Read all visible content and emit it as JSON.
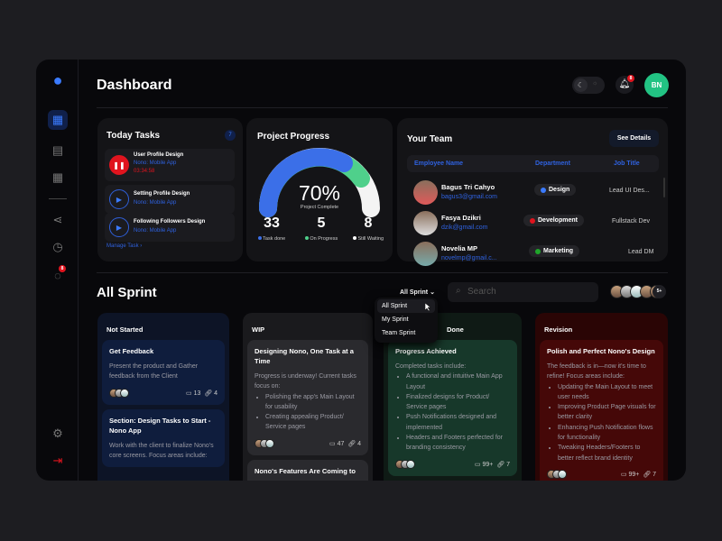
{
  "app": {
    "title": "Dashboard",
    "user_initials": "BN",
    "notif_badge": "8",
    "chat_badge": "8"
  },
  "sidebar": {
    "items": [
      {
        "icon": "logo-pear-icon"
      },
      {
        "icon": "grid-icon",
        "active": true
      },
      {
        "icon": "notepad-icon"
      },
      {
        "icon": "calendar-icon"
      },
      {
        "icon": "share-icon"
      },
      {
        "icon": "clock-icon"
      },
      {
        "icon": "chat-icon"
      },
      {
        "icon": "gear-icon"
      },
      {
        "icon": "logout-icon"
      }
    ]
  },
  "today_tasks": {
    "title": "Today Tasks",
    "count": "7",
    "items": [
      {
        "title": "User Profile Design",
        "project": "Nono: Mobile App",
        "timer": "03:34:58",
        "state": "pause"
      },
      {
        "title": "Setting Profile Design",
        "project": "Nono: Mobile App",
        "state": "play"
      },
      {
        "title": "Following Followers Design",
        "project": "Nono: Mobile App",
        "state": "play"
      }
    ],
    "manage_link": "Manage Task"
  },
  "project_progress": {
    "title": "Project Progress",
    "percent": "70%",
    "percent_label": "Project Complete",
    "stats": [
      {
        "value": "33",
        "label": "Task done",
        "color": "#3b6fe8"
      },
      {
        "value": "5",
        "label": "On Progress",
        "color": "#4fd08b"
      },
      {
        "value": "8",
        "label": "Still Waiting",
        "color": "#ffffff"
      }
    ]
  },
  "team": {
    "title": "Your Team",
    "details_button": "See Details",
    "columns": [
      "Employee Name",
      "Department",
      "Job Title"
    ],
    "rows": [
      {
        "name": "Bagus Tri Cahyo",
        "email": "bagus3@gmail.com",
        "dept": "Design",
        "dept_color": "#3b7bff",
        "job": "Lead UI Des..."
      },
      {
        "name": "Fasya Dzikri",
        "email": "dzik@gmail.com",
        "dept": "Development",
        "dept_color": "#e0141e",
        "job": "Fullstack Dev"
      },
      {
        "name": "Novelia MP",
        "email": "novelmp@gmail.c...",
        "dept": "Marketing",
        "dept_color": "#1fa52a",
        "job": "Lead DM"
      }
    ]
  },
  "sprint": {
    "title": "All Sprint",
    "filter": "All Sprint",
    "search_placeholder": "Search",
    "members_more": "5+",
    "dropdown": [
      "All Sprint",
      "My Sprint",
      "Team Sprint"
    ],
    "columns": [
      {
        "name": "Not Started",
        "cards": [
          {
            "title": "Get Feedback",
            "desc": "Present the product and Gather feedback from the Client",
            "comments": "13",
            "links": "4"
          },
          {
            "title": "Section: Design Tasks to Start - Nono App",
            "desc": "Work with the client to finalize Nono's core screens. Focus areas include:"
          }
        ]
      },
      {
        "name": "WIP",
        "cards": [
          {
            "title": "Designing Nono, One Task at a Time",
            "desc": "Progress is underway! Current tasks focus on:",
            "bullets": [
              "Polishing the app's Main Layout for usability",
              "Creating appealing Product/ Service pages"
            ],
            "comments": "47",
            "links": "4"
          },
          {
            "title": "Nono's Features Are Coming to"
          }
        ]
      },
      {
        "name": "Done",
        "cards": [
          {
            "title": "Progress Achieved",
            "desc": "Completed tasks include:",
            "bullets": [
              "A functional and intuitive Main App Layout",
              "Finalized designs for Product/ Service pages",
              "Push Notifications designed and implemented",
              "Headers and Footers perfected for branding consistency"
            ],
            "comments": "99+",
            "links": "7"
          }
        ]
      },
      {
        "name": "Revision",
        "cards": [
          {
            "title": "Polish and Perfect Nono's Design",
            "desc": "The feedback is in—now it's time to refine! Focus areas include:",
            "bullets": [
              "Updating the Main Layout to meet user needs",
              "Improving Product Page visuals for better clarity",
              "Enhancing Push Notification flows for functionality",
              "Tweaking Headers/Footers to better reflect brand identity"
            ],
            "comments": "99+",
            "links": "7"
          }
        ]
      }
    ]
  }
}
